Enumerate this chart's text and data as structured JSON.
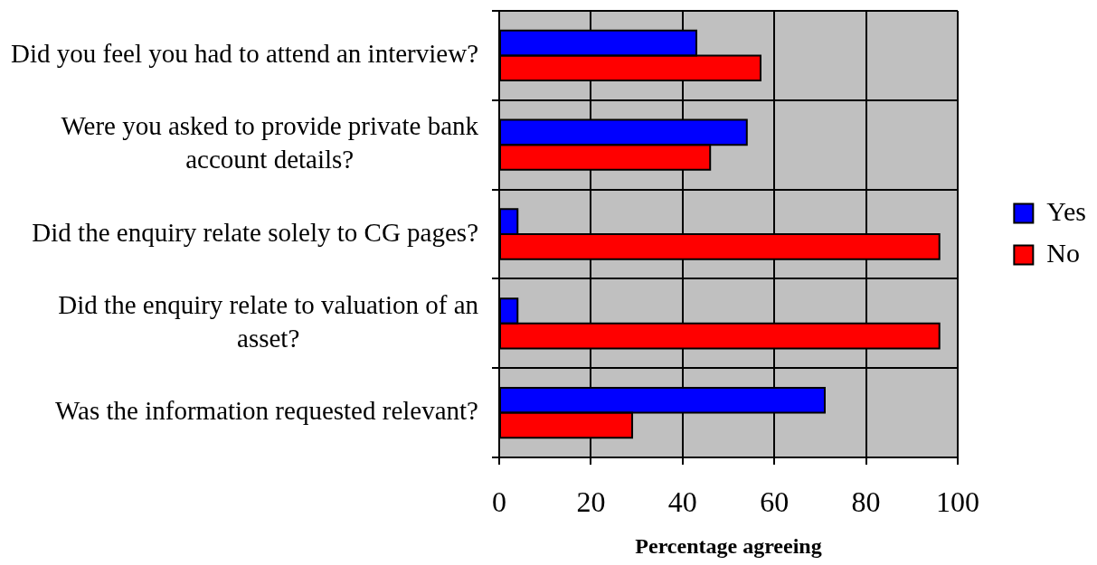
{
  "chart_data": {
    "type": "bar",
    "orientation": "horizontal",
    "categories": [
      "Did you feel you had to attend an interview?",
      "Were you asked to provide private bank account details?",
      "Did the enquiry relate solely to CG pages?",
      "Did the enquiry relate to valuation of an asset?",
      "Was the information requested relevant?"
    ],
    "series": [
      {
        "name": "Yes",
        "color": "#0000ff",
        "values": [
          43,
          54,
          4,
          4,
          71
        ]
      },
      {
        "name": "No",
        "color": "#ff0000",
        "values": [
          57,
          46,
          96,
          96,
          29
        ]
      }
    ],
    "xlabel": "Percentage agreeing",
    "xlim": [
      0,
      100
    ],
    "xticks": [
      0,
      20,
      40,
      60,
      80,
      100
    ],
    "grid": true,
    "legend": "right"
  }
}
